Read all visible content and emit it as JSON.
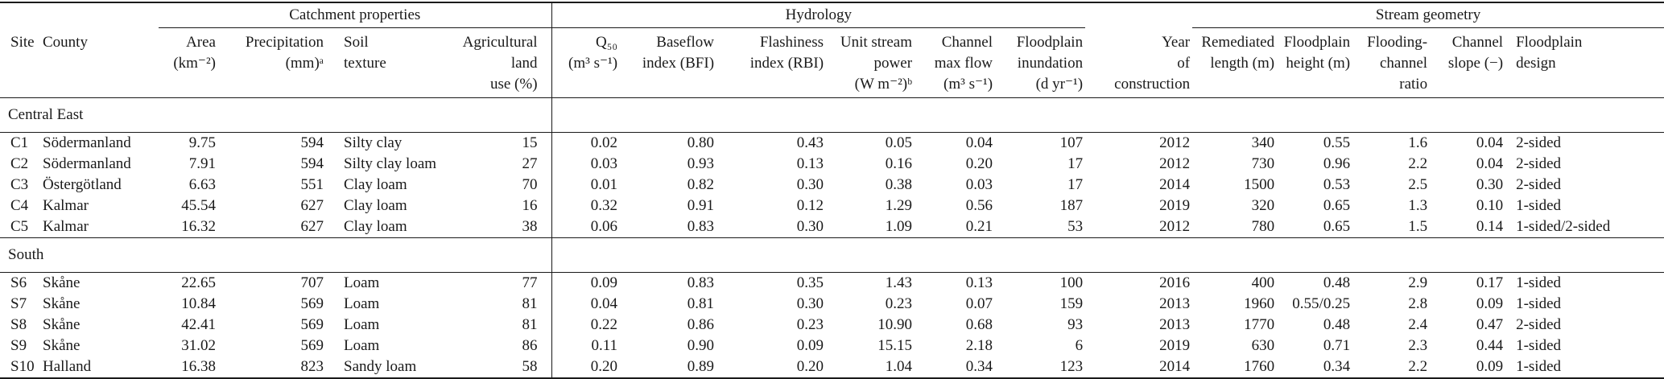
{
  "meta": {
    "colors": {
      "text": "#1a1a1a",
      "background": "#ffffff",
      "rule": "#1a1a1a"
    }
  },
  "table": {
    "groups": [
      "Catchment properties",
      "Hydrology",
      "Stream geometry"
    ],
    "columns": [
      {
        "id": "site",
        "label": "Site"
      },
      {
        "id": "county",
        "label": "County"
      },
      {
        "id": "area",
        "label": "Area\n(km⁻²)"
      },
      {
        "id": "precip",
        "label": "Precipitation\n(mm)ᵃ"
      },
      {
        "id": "soil",
        "label": "Soil\ntexture"
      },
      {
        "id": "agri",
        "label": "Agricultural\nland\nuse (%)"
      },
      {
        "id": "q50",
        "label": "Q₅₀\n(m³ s⁻¹)"
      },
      {
        "id": "bfi",
        "label": "Baseflow\nindex (BFI)"
      },
      {
        "id": "rbi",
        "label": "Flashiness\nindex (RBI)"
      },
      {
        "id": "usp",
        "label": "Unit stream\npower\n(W m⁻²)ᵇ"
      },
      {
        "id": "cmf",
        "label": "Channel\nmax flow\n(m³ s⁻¹)"
      },
      {
        "id": "inund",
        "label": "Floodplain\ninundation\n(d yr⁻¹)"
      },
      {
        "id": "year",
        "label": "Year\nof\nconstruction"
      },
      {
        "id": "remlen",
        "label": "Remediated\nlength (m)"
      },
      {
        "id": "fph",
        "label": "Floodplain\nheight (m)"
      },
      {
        "id": "ratio",
        "label": "Flooding-\nchannel\nratio"
      },
      {
        "id": "slope",
        "label": "Channel\nslope (−)"
      },
      {
        "id": "design",
        "label": "Floodplain\ndesign"
      }
    ],
    "sections": [
      {
        "label": "Central East",
        "rows": [
          {
            "site": "C1",
            "county": "Södermanland",
            "area": "9.75",
            "precip": "594",
            "soil": "Silty clay",
            "agri": "15",
            "q50": "0.02",
            "bfi": "0.80",
            "rbi": "0.43",
            "usp": "0.05",
            "cmf": "0.04",
            "inund": "107",
            "year": "2012",
            "remlen": "340",
            "fph": "0.55",
            "ratio": "1.6",
            "slope": "0.04",
            "design": "2-sided"
          },
          {
            "site": "C2",
            "county": "Södermanland",
            "area": "7.91",
            "precip": "594",
            "soil": "Silty clay loam",
            "agri": "27",
            "q50": "0.03",
            "bfi": "0.93",
            "rbi": "0.13",
            "usp": "0.16",
            "cmf": "0.20",
            "inund": "17",
            "year": "2012",
            "remlen": "730",
            "fph": "0.96",
            "ratio": "2.2",
            "slope": "0.04",
            "design": "2-sided"
          },
          {
            "site": "C3",
            "county": "Östergötland",
            "area": "6.63",
            "precip": "551",
            "soil": "Clay loam",
            "agri": "70",
            "q50": "0.01",
            "bfi": "0.82",
            "rbi": "0.30",
            "usp": "0.38",
            "cmf": "0.03",
            "inund": "17",
            "year": "2014",
            "remlen": "1500",
            "fph": "0.53",
            "ratio": "2.5",
            "slope": "0.30",
            "design": "2-sided"
          },
          {
            "site": "C4",
            "county": "Kalmar",
            "area": "45.54",
            "precip": "627",
            "soil": "Clay loam",
            "agri": "16",
            "q50": "0.32",
            "bfi": "0.91",
            "rbi": "0.12",
            "usp": "1.29",
            "cmf": "0.56",
            "inund": "187",
            "year": "2019",
            "remlen": "320",
            "fph": "0.65",
            "ratio": "1.3",
            "slope": "0.10",
            "design": "1-sided"
          },
          {
            "site": "C5",
            "county": "Kalmar",
            "area": "16.32",
            "precip": "627",
            "soil": "Clay loam",
            "agri": "38",
            "q50": "0.06",
            "bfi": "0.83",
            "rbi": "0.30",
            "usp": "1.09",
            "cmf": "0.21",
            "inund": "53",
            "year": "2012",
            "remlen": "780",
            "fph": "0.65",
            "ratio": "1.5",
            "slope": "0.14",
            "design": "1-sided/2-sided"
          }
        ]
      },
      {
        "label": "South",
        "rows": [
          {
            "site": "S6",
            "county": "Skåne",
            "area": "22.65",
            "precip": "707",
            "soil": "Loam",
            "agri": "77",
            "q50": "0.09",
            "bfi": "0.83",
            "rbi": "0.35",
            "usp": "1.43",
            "cmf": "0.13",
            "inund": "100",
            "year": "2016",
            "remlen": "400",
            "fph": "0.48",
            "ratio": "2.9",
            "slope": "0.17",
            "design": "1-sided"
          },
          {
            "site": "S7",
            "county": "Skåne",
            "area": "10.84",
            "precip": "569",
            "soil": "Loam",
            "agri": "81",
            "q50": "0.04",
            "bfi": "0.81",
            "rbi": "0.30",
            "usp": "0.23",
            "cmf": "0.07",
            "inund": "159",
            "year": "2013",
            "remlen": "1960",
            "fph": "0.55/0.25",
            "ratio": "2.8",
            "slope": "0.09",
            "design": "1-sided"
          },
          {
            "site": "S8",
            "county": "Skåne",
            "area": "42.41",
            "precip": "569",
            "soil": "Loam",
            "agri": "81",
            "q50": "0.22",
            "bfi": "0.86",
            "rbi": "0.23",
            "usp": "10.90",
            "cmf": "0.68",
            "inund": "93",
            "year": "2013",
            "remlen": "1770",
            "fph": "0.48",
            "ratio": "2.4",
            "slope": "0.47",
            "design": "2-sided"
          },
          {
            "site": "S9",
            "county": "Skåne",
            "area": "31.02",
            "precip": "569",
            "soil": "Loam",
            "agri": "86",
            "q50": "0.11",
            "bfi": "0.90",
            "rbi": "0.09",
            "usp": "15.15",
            "cmf": "2.18",
            "inund": "6",
            "year": "2019",
            "remlen": "630",
            "fph": "0.71",
            "ratio": "2.3",
            "slope": "0.44",
            "design": "1-sided"
          },
          {
            "site": "S10",
            "county": "Halland",
            "area": "16.38",
            "precip": "823",
            "soil": "Sandy loam",
            "agri": "58",
            "q50": "0.20",
            "bfi": "0.89",
            "rbi": "0.20",
            "usp": "1.04",
            "cmf": "0.34",
            "inund": "123",
            "year": "2014",
            "remlen": "1760",
            "fph": "0.34",
            "ratio": "2.2",
            "slope": "0.09",
            "design": "1-sided"
          }
        ]
      }
    ]
  }
}
